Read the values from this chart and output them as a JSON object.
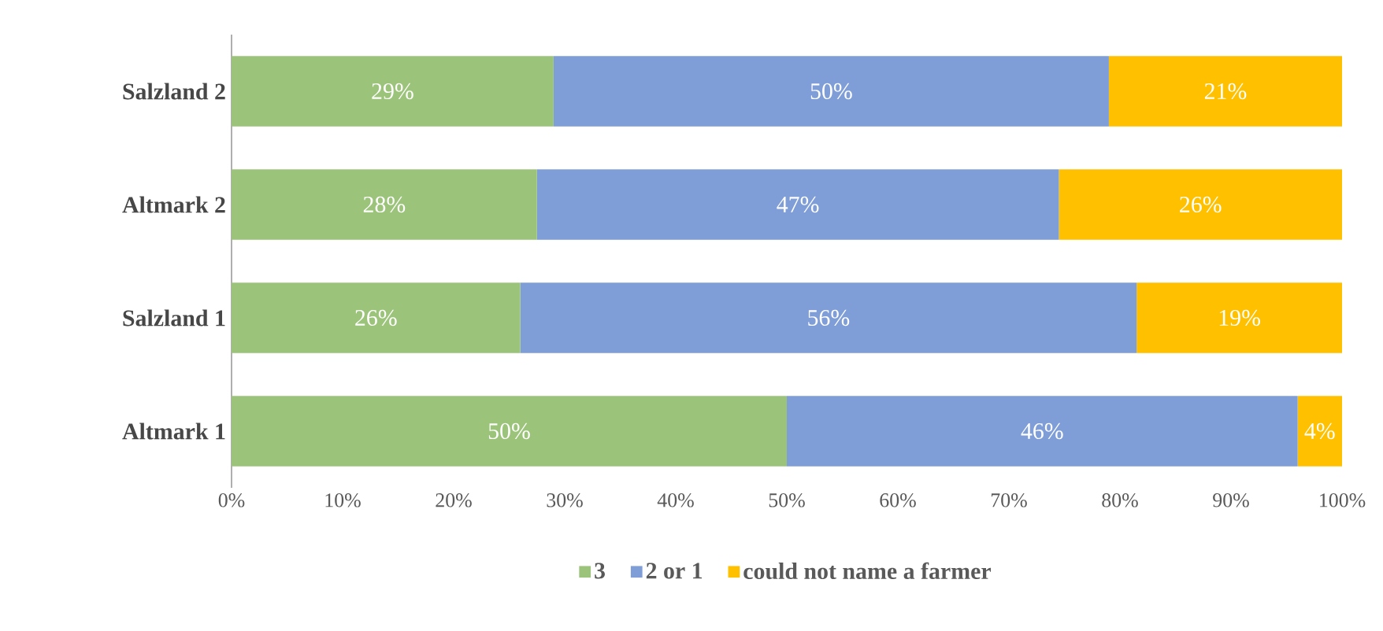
{
  "chart_data": {
    "type": "bar",
    "orientation": "horizontal",
    "stacked": true,
    "categories": [
      "Salzland 2",
      "Altmark 2",
      "Salzland 1",
      "Altmark 1"
    ],
    "series": [
      {
        "name": "3",
        "color": "#9bc47a",
        "values": [
          29,
          27.5,
          26,
          50
        ],
        "value_labels": [
          "29%",
          "28%",
          "26%",
          "50%"
        ]
      },
      {
        "name": "2 or 1",
        "color": "#7f9ed8",
        "values": [
          50,
          47,
          55.5,
          46
        ],
        "value_labels": [
          "50%",
          "47%",
          "56%",
          "46%"
        ]
      },
      {
        "name": "could not name a farmer",
        "color": "#ffc000",
        "values": [
          21,
          25.5,
          18.5,
          4
        ],
        "value_labels": [
          "21%",
          "26%",
          "19%",
          "4%"
        ]
      }
    ],
    "xlim": [
      0,
      100
    ],
    "xticks": [
      {
        "value": 0,
        "label": "0%"
      },
      {
        "value": 10,
        "label": "10%"
      },
      {
        "value": 20,
        "label": "20%"
      },
      {
        "value": 30,
        "label": "30%"
      },
      {
        "value": 40,
        "label": "40%"
      },
      {
        "value": 50,
        "label": "50%"
      },
      {
        "value": 60,
        "label": "60%"
      },
      {
        "value": 70,
        "label": "70%"
      },
      {
        "value": 80,
        "label": "80%"
      },
      {
        "value": 90,
        "label": "90%"
      },
      {
        "value": 100,
        "label": "100%"
      }
    ],
    "legend": "bottom",
    "grid": false
  }
}
